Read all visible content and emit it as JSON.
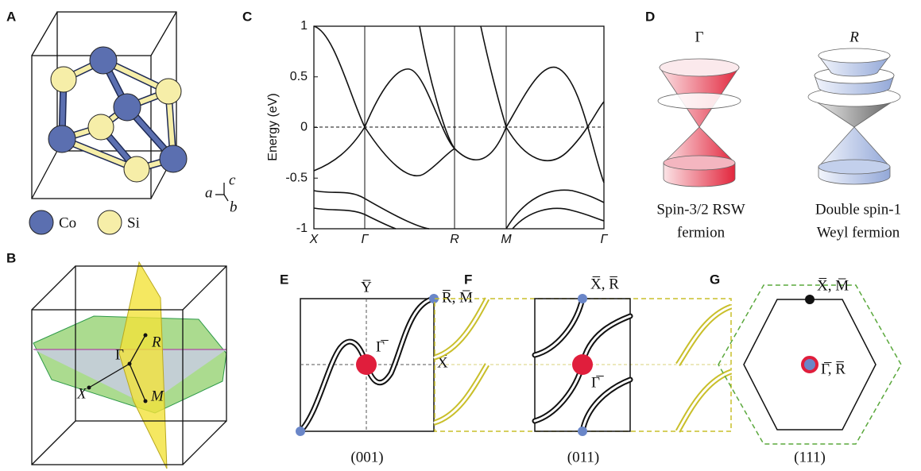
{
  "panels": {
    "A": {
      "label": "A",
      "legend": [
        "Co",
        "Si"
      ],
      "axes": [
        "a",
        "b",
        "c"
      ]
    },
    "B": {
      "label": "B",
      "points": [
        "R",
        "Γ",
        "X",
        "M"
      ]
    },
    "C": {
      "label": "C",
      "chart_data": {
        "type": "line",
        "ylabel": "Energy (eV)",
        "categories": [
          "X",
          "Γ",
          "R",
          "M",
          "Γ"
        ],
        "ylim": [
          -1,
          1
        ],
        "yticks": [
          -1,
          -0.5,
          0,
          0.5,
          1
        ]
      }
    },
    "D": {
      "label": "D",
      "cones": [
        {
          "point": "Γ",
          "caption": [
            "Spin-3/2 RSW",
            "fermion"
          ]
        },
        {
          "point": "R",
          "caption": [
            "Double spin-1",
            "Weyl fermion"
          ]
        }
      ]
    },
    "E": {
      "label": "E",
      "points": [
        "Y̅",
        "R̅, M̅",
        "Γ̅",
        "X̅"
      ],
      "surface": "(001)"
    },
    "F": {
      "label": "F",
      "points": [
        "X̅, R̅",
        "Γ̅"
      ],
      "surface": "(011)"
    },
    "G": {
      "label": "G",
      "points": [
        "X̅, M̅",
        "Γ̅, R̅"
      ],
      "surface": "(111)"
    }
  }
}
